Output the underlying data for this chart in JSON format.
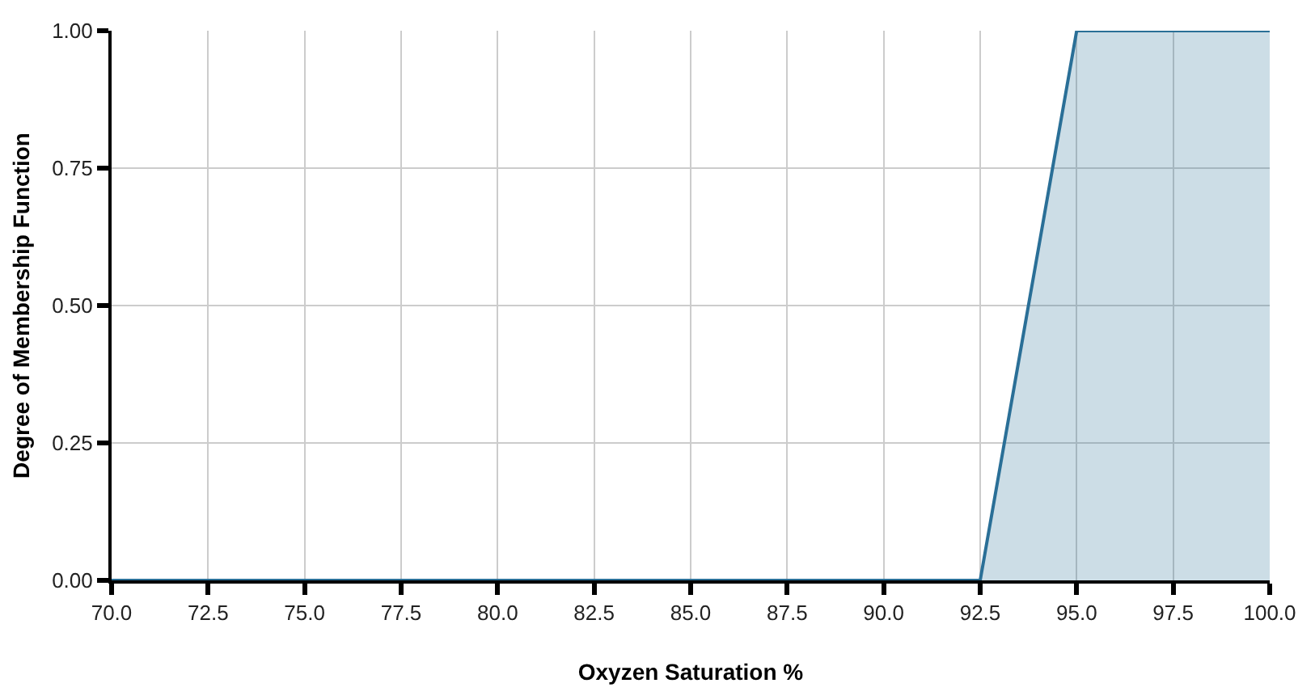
{
  "chart_data": {
    "type": "area",
    "xlabel": "Oxyzen Saturation %",
    "ylabel": "Degree of Membership Function",
    "x": [
      70,
      92.5,
      95,
      100
    ],
    "series": [
      {
        "color": "#2a6f97",
        "values": [
          0,
          0,
          1,
          1
        ]
      }
    ],
    "xlim": [
      70,
      100
    ],
    "xticks": [
      {
        "value": 70,
        "label": "70.0"
      },
      {
        "value": 72.5,
        "label": "72.5"
      },
      {
        "value": 75,
        "label": "75.0"
      },
      {
        "value": 77.5,
        "label": "77.5"
      },
      {
        "value": 80,
        "label": "80.0"
      },
      {
        "value": 82.5,
        "label": "82.5"
      },
      {
        "value": 85,
        "label": "85.0"
      },
      {
        "value": 87.5,
        "label": "87.5"
      },
      {
        "value": 90,
        "label": "90.0"
      },
      {
        "value": 92.5,
        "label": "92.5"
      },
      {
        "value": 95,
        "label": "95.0"
      },
      {
        "value": 97.5,
        "label": "97.5"
      },
      {
        "value": 100,
        "label": "100.0"
      }
    ],
    "ylim": [
      0,
      1
    ],
    "yticks": [
      {
        "value": 0,
        "label": "0.00"
      },
      {
        "value": 0.25,
        "label": "0.25"
      },
      {
        "value": 0.5,
        "label": "0.50"
      },
      {
        "value": 0.75,
        "label": "0.75"
      },
      {
        "value": 1,
        "label": "1.00"
      }
    ],
    "grid": true,
    "marker": "none",
    "line_style": "solid"
  }
}
